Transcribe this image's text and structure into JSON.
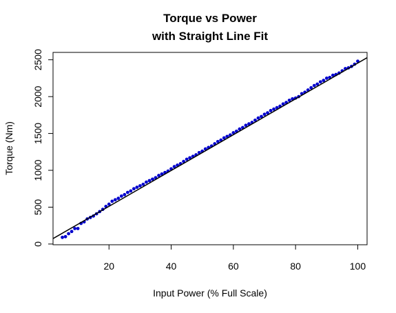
{
  "chart_data": {
    "type": "scatter",
    "title": "Torque vs Power",
    "subtitle": "with Straight Line Fit",
    "xlabel": "Input Power (% Full Scale)",
    "ylabel": "Torque (Nm)",
    "xlim": [
      2,
      103
    ],
    "ylim": [
      -10,
      2600
    ],
    "xticks": [
      20,
      40,
      60,
      80,
      100
    ],
    "yticks": [
      0,
      500,
      1000,
      1500,
      2000,
      2500
    ],
    "point_color": "#0000cd",
    "fit_color": "#000000",
    "series": [
      {
        "x": [
          5,
          6,
          7,
          8,
          9,
          10,
          11,
          12,
          13,
          14,
          15,
          16,
          17,
          18,
          19,
          20,
          21,
          22,
          23,
          24,
          25,
          26,
          27,
          28,
          29,
          30,
          31,
          32,
          33,
          34,
          35,
          36,
          37,
          38,
          39,
          40,
          41,
          42,
          43,
          44,
          45,
          46,
          47,
          48,
          49,
          50,
          51,
          52,
          53,
          54,
          55,
          56,
          57,
          58,
          59,
          60,
          61,
          62,
          63,
          64,
          65,
          66,
          67,
          68,
          69,
          70,
          71,
          72,
          73,
          74,
          75,
          76,
          77,
          78,
          79,
          80,
          81,
          82,
          83,
          84,
          85,
          86,
          87,
          88,
          89,
          90,
          91,
          92,
          93,
          94,
          95,
          96,
          97,
          98,
          99,
          100
        ],
        "y": [
          90,
          100,
          140,
          170,
          210,
          210,
          280,
          300,
          340,
          360,
          380,
          410,
          440,
          470,
          510,
          540,
          580,
          600,
          620,
          650,
          670,
          700,
          720,
          750,
          770,
          790,
          810,
          840,
          860,
          880,
          900,
          930,
          950,
          970,
          990,
          1020,
          1050,
          1070,
          1090,
          1120,
          1150,
          1170,
          1190,
          1210,
          1240,
          1260,
          1290,
          1310,
          1330,
          1360,
          1390,
          1410,
          1440,
          1460,
          1480,
          1510,
          1530,
          1560,
          1580,
          1610,
          1630,
          1650,
          1680,
          1710,
          1730,
          1760,
          1780,
          1810,
          1830,
          1850,
          1870,
          1900,
          1920,
          1950,
          1970,
          1980,
          2000,
          2040,
          2060,
          2090,
          2120,
          2150,
          2170,
          2200,
          2220,
          2250,
          2260,
          2290,
          2300,
          2320,
          2350,
          2380,
          2390,
          2410,
          2440,
          2480
        ]
      }
    ],
    "fit": {
      "slope": 24.3,
      "intercept": 25
    }
  }
}
